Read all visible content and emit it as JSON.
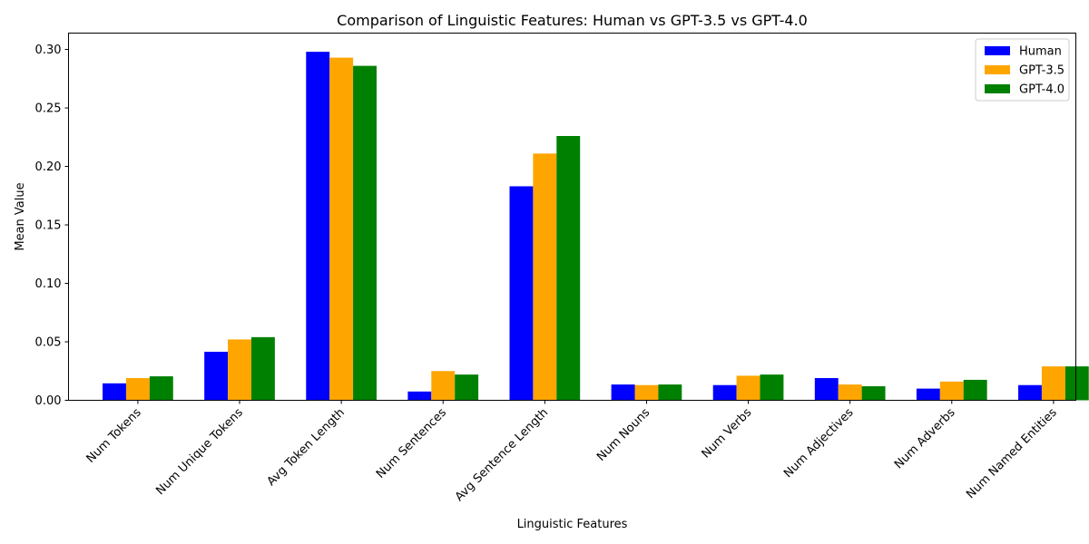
{
  "chart_data": {
    "type": "bar",
    "title": "Comparison of Linguistic Features: Human vs GPT-3.5 vs GPT-4.0",
    "xlabel": "Linguistic Features",
    "ylabel": "Mean Value",
    "categories": [
      "Num Tokens",
      "Num Unique Tokens",
      "Avg Token Length",
      "Num Sentences",
      "Avg Sentence Length",
      "Num Nouns",
      "Num Verbs",
      "Num Adjectives",
      "Num Adverbs",
      "Num Named Entities"
    ],
    "series": [
      {
        "name": "Human",
        "color": "#0000ff",
        "values": [
          0.0145,
          0.0415,
          0.298,
          0.0075,
          0.183,
          0.0135,
          0.013,
          0.019,
          0.01,
          0.013
        ]
      },
      {
        "name": "GPT-3.5",
        "color": "#ffa500",
        "values": [
          0.019,
          0.052,
          0.293,
          0.025,
          0.211,
          0.013,
          0.021,
          0.0135,
          0.016,
          0.029
        ]
      },
      {
        "name": "GPT-4.0",
        "color": "#008000",
        "values": [
          0.0205,
          0.054,
          0.286,
          0.022,
          0.226,
          0.0135,
          0.022,
          0.012,
          0.0175,
          0.029
        ]
      }
    ],
    "y_ticks": [
      "0.00",
      "0.05",
      "0.10",
      "0.15",
      "0.20",
      "0.25",
      "0.30"
    ],
    "ylim": [
      0,
      0.314
    ],
    "grid": false,
    "legend_position": "top-right"
  }
}
